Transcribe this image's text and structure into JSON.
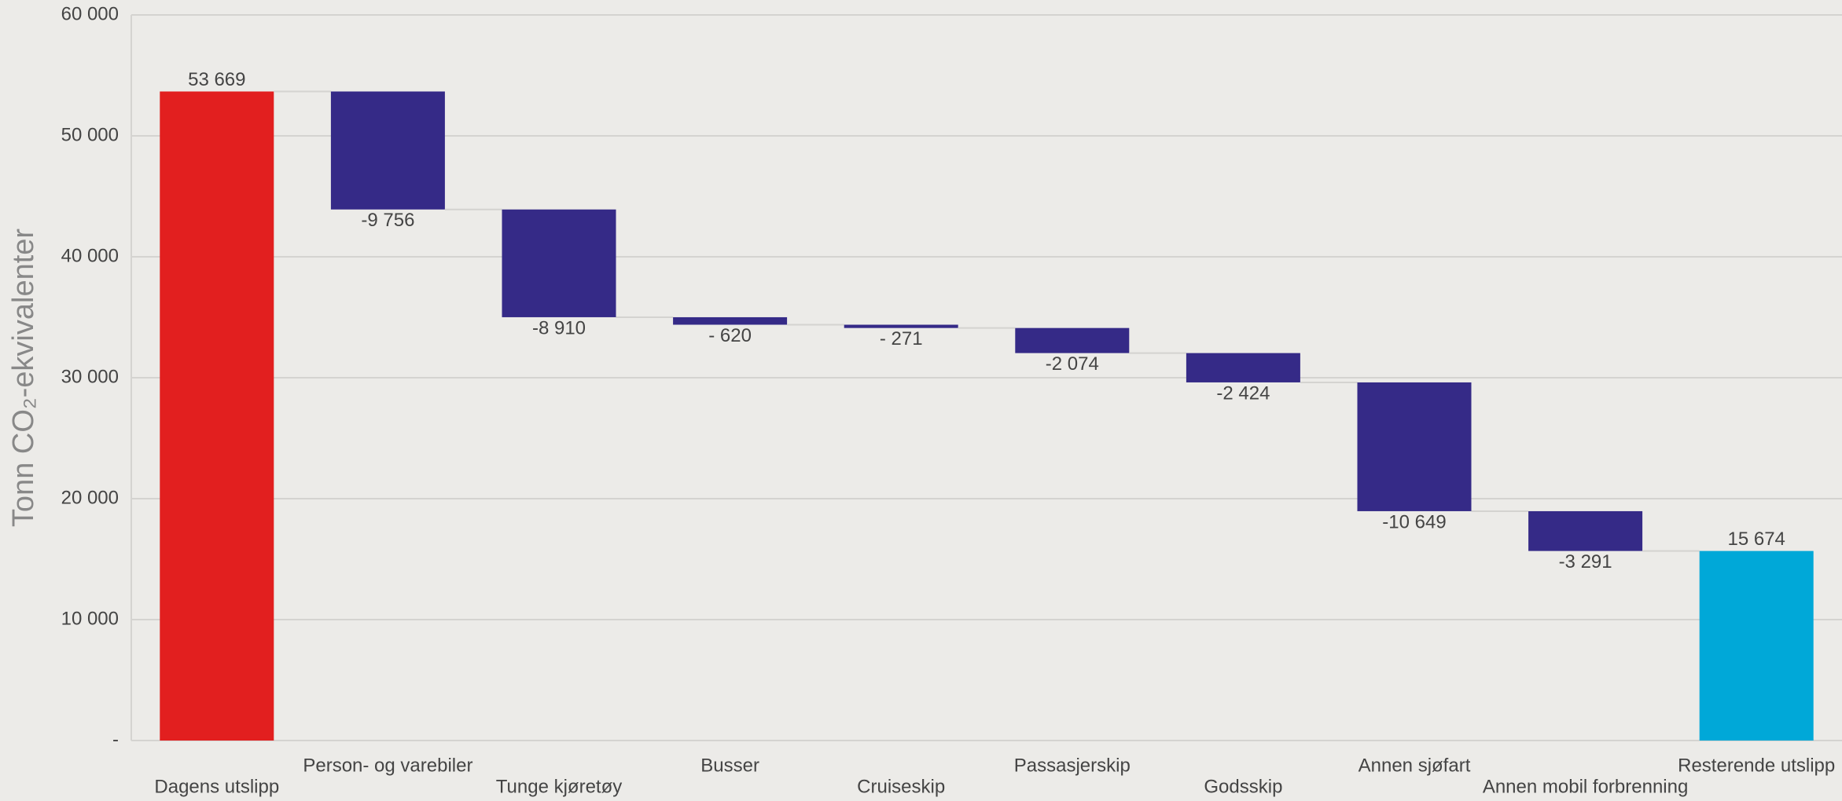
{
  "chart_data": {
    "type": "waterfall",
    "y_label": "Tonn CO₂-ekvivalenter",
    "categories": [
      "Dagens utslipp",
      "Person- og varebiler",
      "Tunge kjøretøy",
      "Busser",
      "Cruiseskip",
      "Passasjerskip",
      "Godsskip",
      "Annen sjøfart",
      "Annen mobil forbrenning",
      "Resterende utslipp"
    ],
    "values": [
      53669,
      -9756,
      -8910,
      -620,
      -271,
      -2074,
      -2424,
      -10649,
      -3291,
      15674
    ],
    "value_labels": [
      "53 669",
      "-9 756",
      "-8 910",
      "- 620",
      "- 271",
      "-2 074",
      "-2 424",
      "-10 649",
      "-3 291",
      "15 674"
    ],
    "measure": [
      "absolute",
      "relative",
      "relative",
      "relative",
      "relative",
      "relative",
      "relative",
      "relative",
      "relative",
      "absolute"
    ],
    "colors": [
      "#e21f1f",
      "#352a87",
      "#352a87",
      "#352a87",
      "#352a87",
      "#352a87",
      "#352a87",
      "#352a87",
      "#352a87",
      "#00a8d8"
    ],
    "ylim": [
      0,
      60000
    ],
    "yticks": [
      {
        "value": 0,
        "label": "-"
      },
      {
        "value": 10000,
        "label": "10 000"
      },
      {
        "value": 20000,
        "label": "20 000"
      },
      {
        "value": 30000,
        "label": "30 000"
      },
      {
        "value": 40000,
        "label": "40 000"
      },
      {
        "value": 50000,
        "label": "50 000"
      },
      {
        "value": 60000,
        "label": "60 000"
      }
    ],
    "grid": true
  }
}
